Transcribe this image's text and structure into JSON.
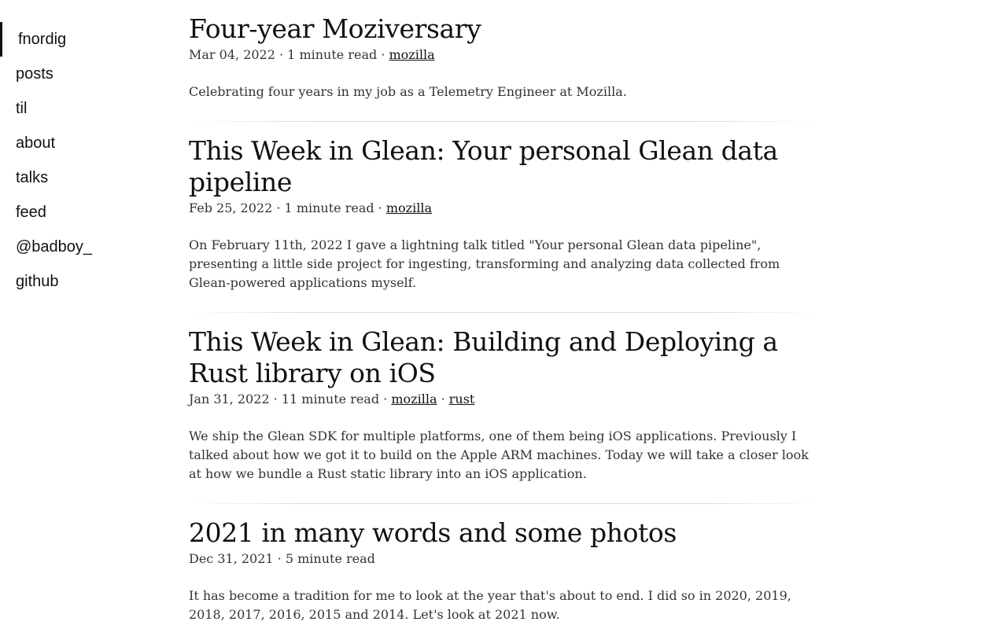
{
  "sidebar": {
    "items": [
      {
        "label": "fnordig"
      },
      {
        "label": "posts"
      },
      {
        "label": "til"
      },
      {
        "label": "about"
      },
      {
        "label": "talks"
      },
      {
        "label": "feed"
      },
      {
        "label": "@badboy_"
      },
      {
        "label": "github"
      }
    ]
  },
  "posts": [
    {
      "title": "Four-year Moziversary",
      "date": "Mar 04, 2022",
      "read_time": "1 minute read",
      "tags": [
        "mozilla"
      ],
      "summary": "Celebrating four years in my job as a Telemetry Engineer at Mozilla."
    },
    {
      "title": "This Week in Glean: Your personal Glean data pipeline",
      "date": "Feb 25, 2022",
      "read_time": "1 minute read",
      "tags": [
        "mozilla"
      ],
      "summary": "On February 11th, 2022 I gave a lightning talk titled \"Your personal Glean data pipeline\", presenting a little side project for ingesting, transforming and analyzing data collected from Glean-powered applications myself."
    },
    {
      "title": "This Week in Glean: Building and Deploying a Rust library on iOS",
      "date": "Jan 31, 2022",
      "read_time": "11 minute read",
      "tags": [
        "mozilla",
        "rust"
      ],
      "summary": "We ship the Glean SDK for multiple platforms, one of them being iOS applications. Previously I talked about how we got it to build on the Apple ARM machines. Today we will take a closer look at how we bundle a Rust static library into an iOS application."
    },
    {
      "title": "2021 in many words and some photos",
      "date": "Dec 31, 2021",
      "read_time": "5 minute read",
      "tags": [],
      "summary": "It has become a tradition for me to look at the year that's about to end. I did so in 2020, 2019, 2018, 2017, 2016, 2015 and 2014. Let's look at 2021 now."
    }
  ]
}
